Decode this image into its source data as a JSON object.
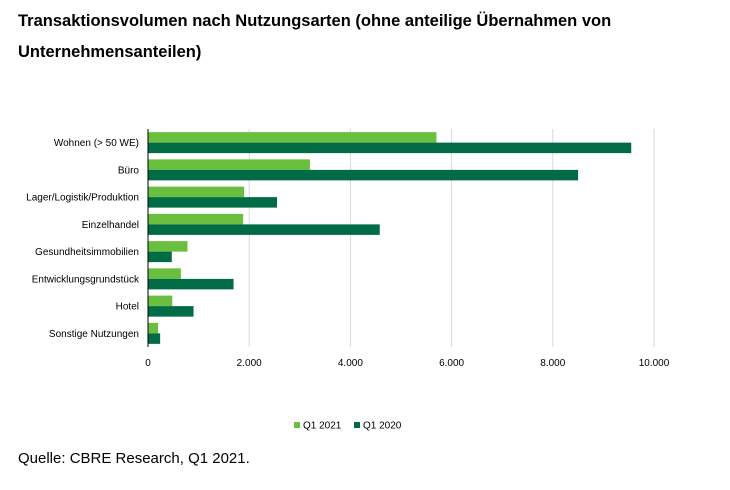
{
  "title": "Transaktionsvolumen nach Nutzungsarten (ohne anteilige Übernahmen von Unternehmensanteilen)",
  "source": "Quelle: CBRE Research, Q1 2021.",
  "chart_data": {
    "type": "bar",
    "orientation": "horizontal",
    "title": "Transaktionsvolumen nach Nutzungsarten (ohne anteilige Übernahmen von Unternehmensanteilen)",
    "categories": [
      "Wohnen (> 50 WE)",
      "Büro",
      "Lager/Logistik/Produktion",
      "Einzelhandel",
      "Gesundheitsimmobilien",
      "Entwicklungsgrundstück",
      "Hotel",
      "Sonstige Nutzungen"
    ],
    "series": [
      {
        "name": "Q1 2021",
        "color": "#6ABF3F",
        "values": [
          5700,
          3200,
          1900,
          1880,
          780,
          650,
          480,
          200
        ]
      },
      {
        "name": "Q1 2020",
        "color": "#006B45",
        "values": [
          9550,
          8500,
          2550,
          4580,
          470,
          1690,
          900,
          240
        ]
      }
    ],
    "xlim": [
      0,
      10000
    ],
    "xticks": [
      0,
      2000,
      4000,
      6000,
      8000,
      10000
    ],
    "xtick_labels": [
      "0",
      "2.000",
      "4.000",
      "6.000",
      "8.000",
      "10.000"
    ],
    "xlabel": "",
    "ylabel": "",
    "grid": "vertical",
    "legend_position": "bottom-center"
  }
}
